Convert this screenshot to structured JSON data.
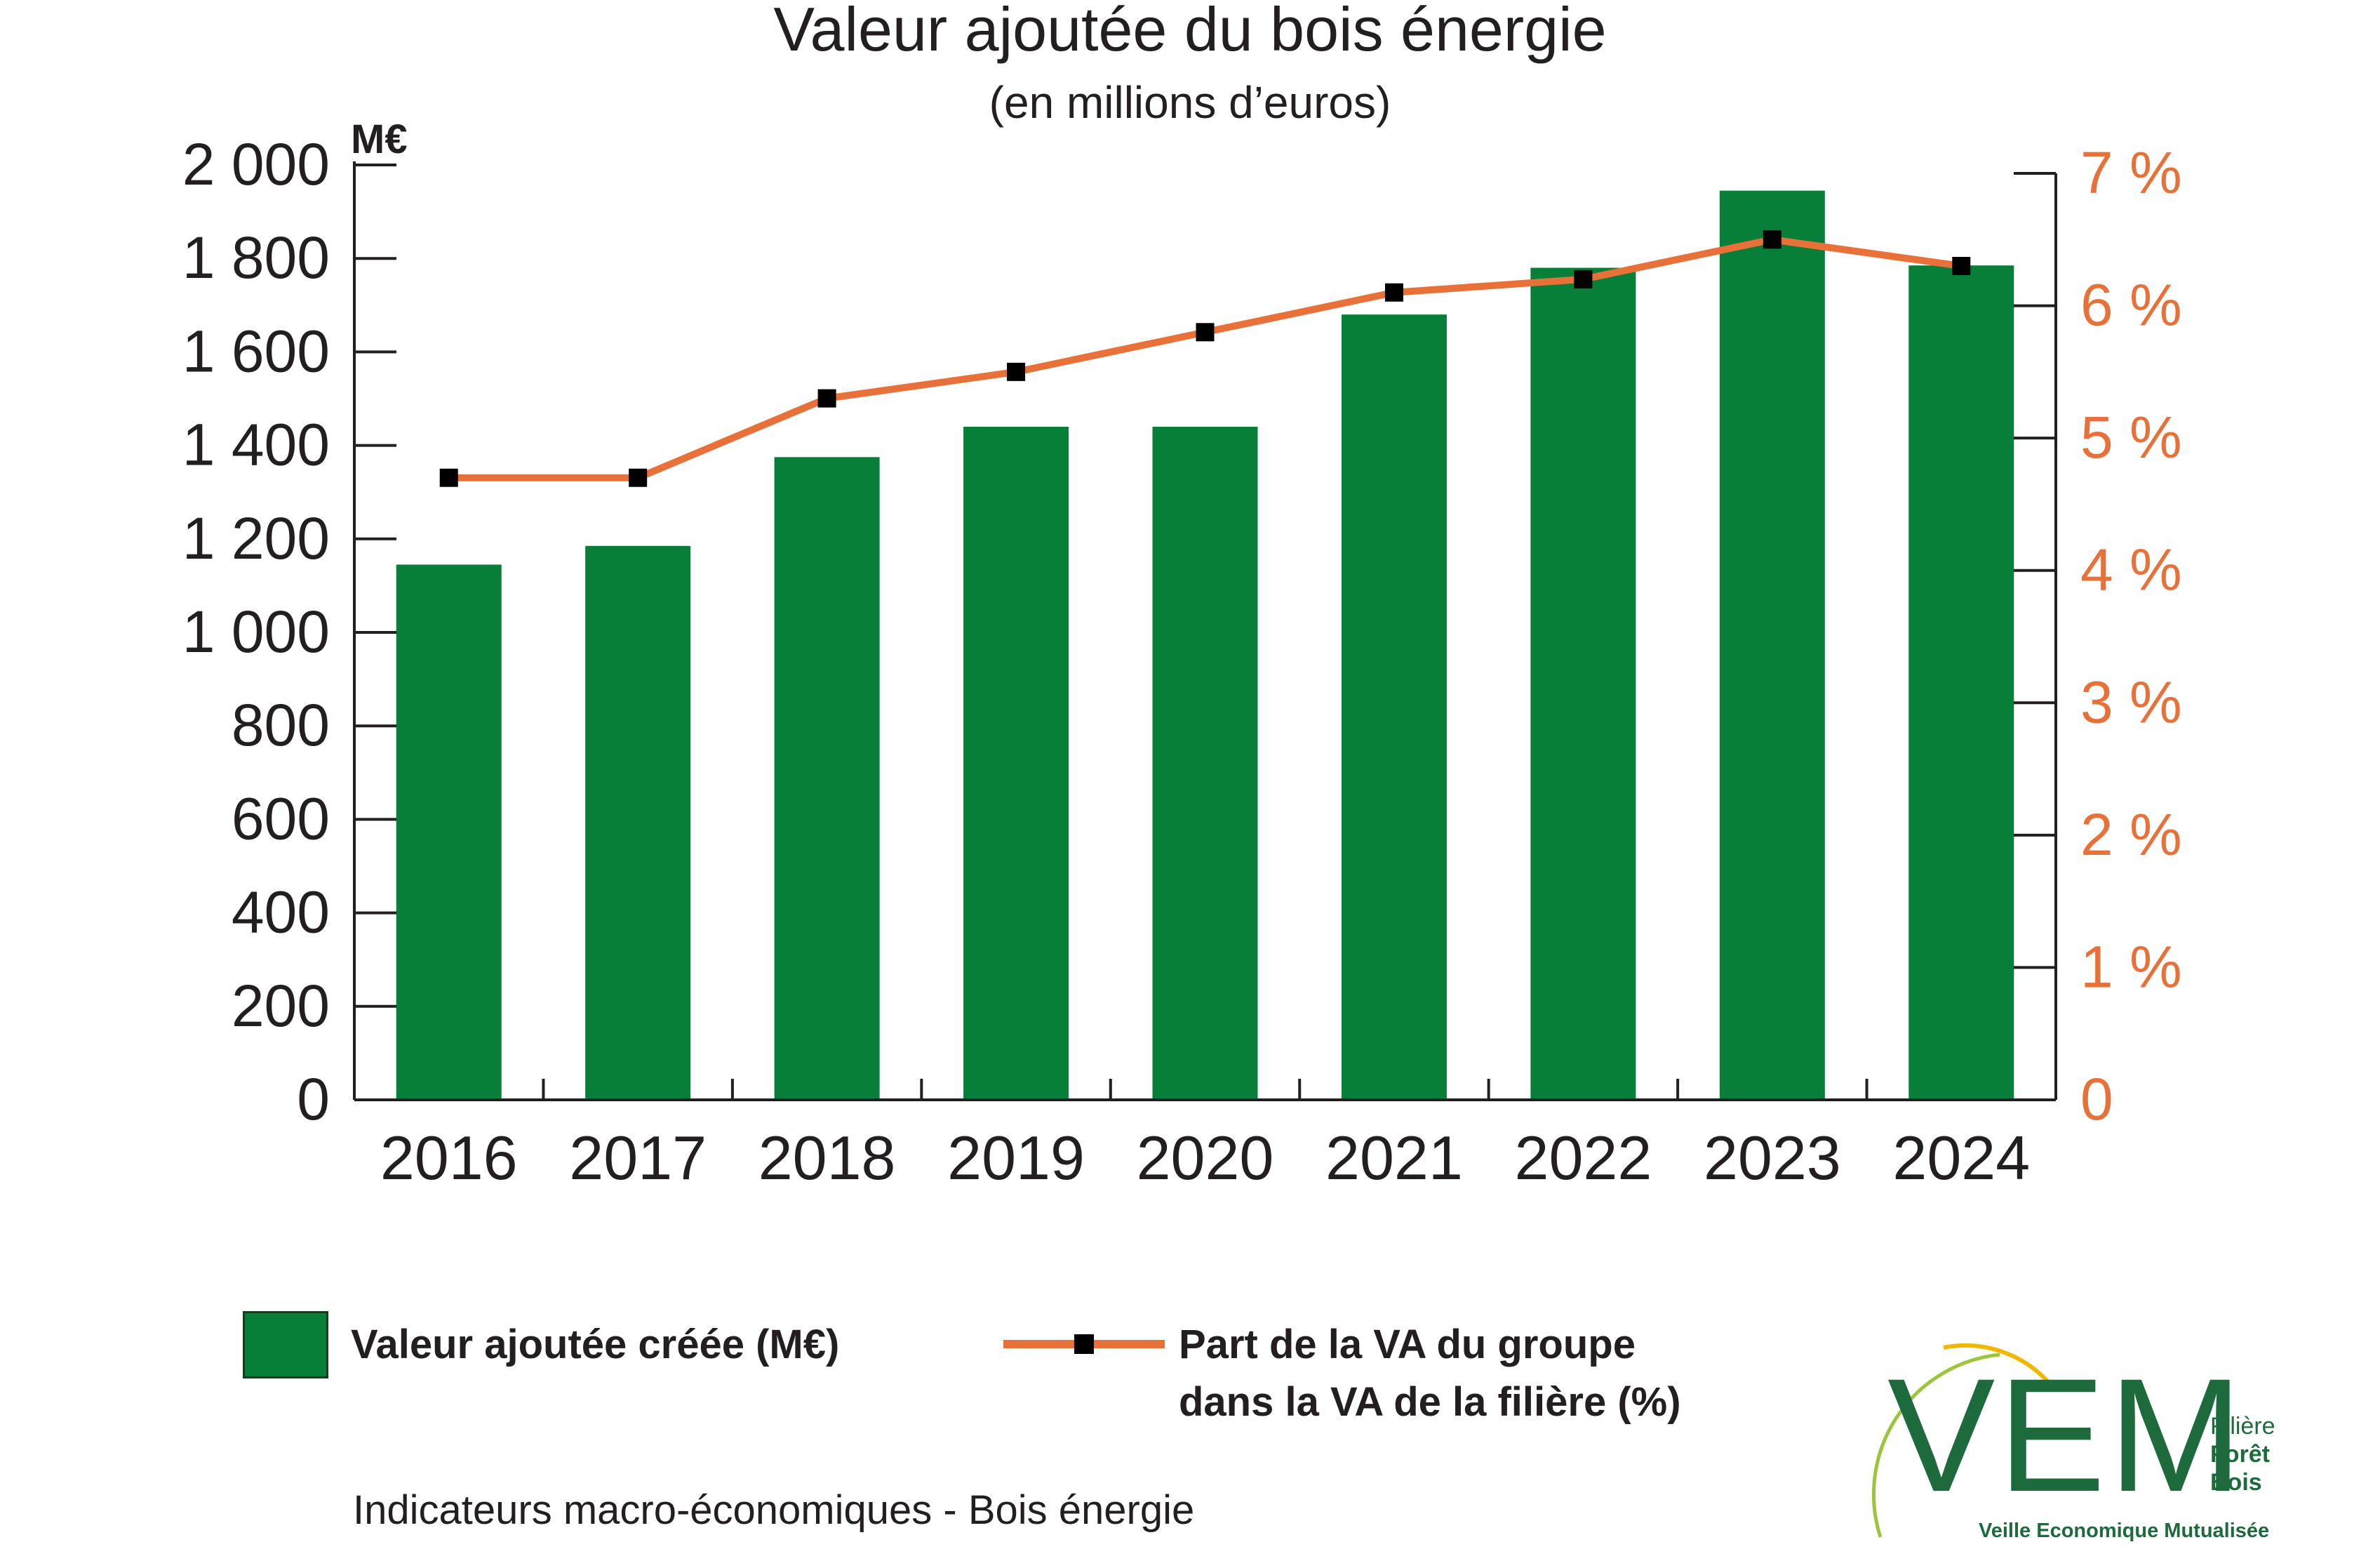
{
  "chart_data": {
    "type": "bar",
    "title": "Valeur ajoutée du bois énergie",
    "subtitle": "(en millions d’euros)",
    "y_unit": "M€",
    "categories": [
      "2016",
      "2017",
      "2018",
      "2019",
      "2020",
      "2021",
      "2022",
      "2023",
      "2024"
    ],
    "ylim": [
      0,
      2000
    ],
    "y_ticks": [
      "0",
      "200",
      "400",
      "600",
      "800",
      "1 000",
      "1 200",
      "1 400",
      "1 600",
      "1 800",
      "2 000"
    ],
    "y2lim": [
      0,
      7
    ],
    "y2_ticks": [
      "0",
      "1 %",
      "2 %",
      "3 %",
      "4 %",
      "5 %",
      "6 %",
      "7 %"
    ],
    "series": [
      {
        "name": "Valeur ajoutée créée (M€)",
        "type": "bar",
        "axis": "left",
        "color": "#087f38",
        "values": [
          1145,
          1185,
          1375,
          1440,
          1440,
          1680,
          1780,
          1945,
          1785
        ]
      },
      {
        "name": "Part de la VA du groupe dans la VA de la filière (%)",
        "type": "line",
        "axis": "right",
        "color": "#e8713a",
        "marker_color": "#000000",
        "values": [
          4.7,
          4.7,
          5.3,
          5.5,
          5.8,
          6.1,
          6.2,
          6.5,
          6.3
        ]
      }
    ],
    "grid": false,
    "legend_position": "bottom"
  },
  "legend": {
    "bar_label": "Valeur ajoutée créée (M€)",
    "line_label_1": "Part de la VA du groupe",
    "line_label_2": "dans la VA de la filière (%)"
  },
  "footer": "Indicateurs macro-économiques - Bois énergie",
  "logo": {
    "letters": "VEM",
    "side_1": "Filière",
    "side_2": "Forêt",
    "side_3": "Bois",
    "tagline": "Veille Economique Mutualisée"
  },
  "colors": {
    "bar": "#087f38",
    "line": "#e8713a",
    "right_axis_text": "#e8713a",
    "text": "#231f20",
    "logo": "#1d6b3c"
  }
}
